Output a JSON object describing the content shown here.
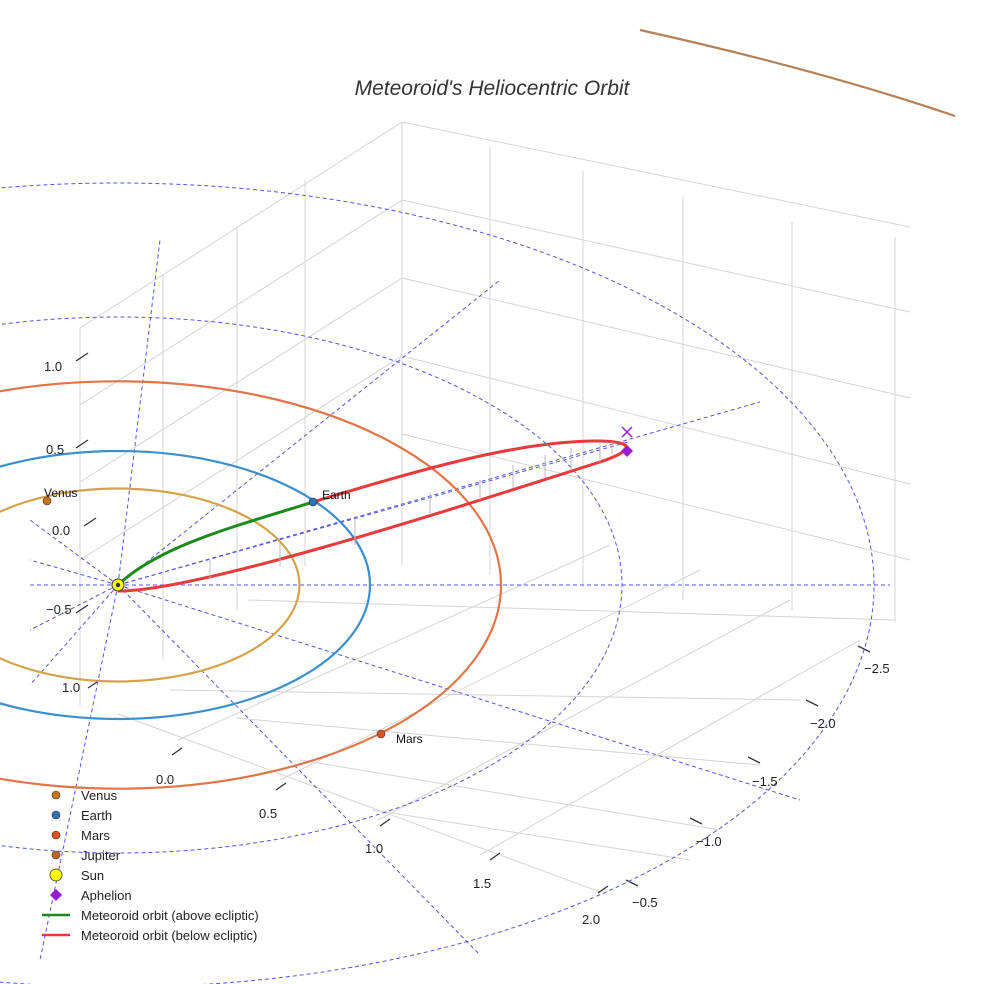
{
  "chart_data": {
    "type": "scatter3d",
    "title": "Meteoroid's Heliocentric Orbit",
    "xlabel": "",
    "ylabel": "",
    "zlabel": "",
    "x_ticks": [
      "−2.5",
      "−2.0",
      "−1.5",
      "−1.0",
      "−0.5"
    ],
    "y_ticks": [
      "0.0",
      "0.5",
      "1.0",
      "1.5",
      "2.0"
    ],
    "z_ticks": [
      "1.0",
      "0.5",
      "0.0",
      "−0.5",
      "1.0"
    ],
    "planets": [
      {
        "name": "Venus",
        "label": "Venus",
        "a_au": 0.72,
        "color": "#d4a24a",
        "marker_color": "#c8741b"
      },
      {
        "name": "Earth",
        "label": "Earth",
        "a_au": 1.0,
        "color": "#3a8fcf",
        "marker_color": "#2a74b5"
      },
      {
        "name": "Mars",
        "label": "Mars",
        "a_au": 1.52,
        "color": "#e07548",
        "marker_color": "#d9541e"
      },
      {
        "name": "Jupiter",
        "label": "",
        "a_au": 5.2,
        "color": "#b5805a",
        "marker_color": "#c0642a"
      }
    ],
    "sun": {
      "name": "Sun",
      "x": 0,
      "y": 0,
      "z": 0,
      "color": "#ffff00"
    },
    "aphelion": {
      "name": "Aphelion",
      "color": "#9b1ad6"
    },
    "series": [
      {
        "name": "Meteoroid orbit (above ecliptic)",
        "color": "#1a8a1a"
      },
      {
        "name": "Meteoroid orbit (below ecliptic)",
        "color": "#e83a3a"
      }
    ],
    "legend": {
      "position": "bottom-left",
      "entries": [
        {
          "label": "Venus",
          "kind": "dot",
          "color": "#c8741b"
        },
        {
          "label": "Earth",
          "kind": "dot",
          "color": "#2a74b5"
        },
        {
          "label": "Mars",
          "kind": "dot",
          "color": "#d9541e"
        },
        {
          "label": "Jupiter",
          "kind": "dot",
          "color": "#c0642a"
        },
        {
          "label": "Sun",
          "kind": "sun",
          "color": "#ffff00"
        },
        {
          "label": "Aphelion",
          "kind": "diamond",
          "color": "#9b1ad6"
        },
        {
          "label": "Meteoroid orbit (above ecliptic)",
          "kind": "line",
          "color": "#1a8a1a"
        },
        {
          "label": "Meteoroid orbit (below ecliptic)",
          "kind": "line",
          "color": "#e83a3a"
        }
      ]
    },
    "grid": true,
    "reference_color": "#5555dd"
  }
}
